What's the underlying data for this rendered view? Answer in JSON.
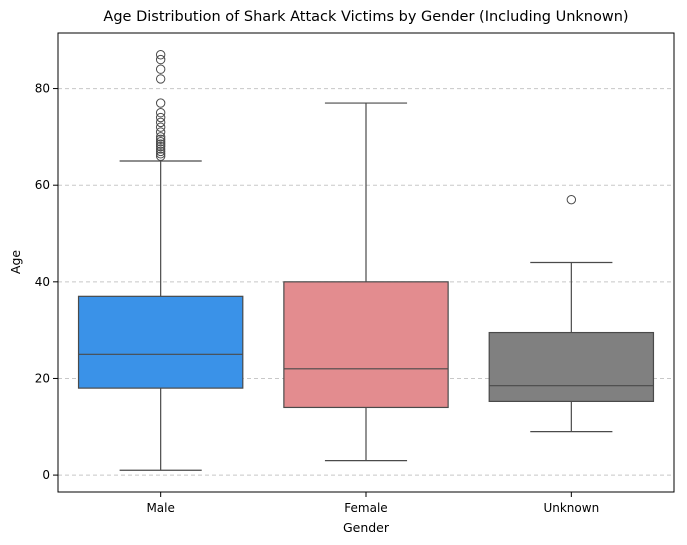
{
  "chart_data": {
    "type": "box",
    "title": "Age Distribution of Shark Attack Victims by Gender (Including Unknown)",
    "xlabel": "Gender",
    "ylabel": "Age",
    "ylim": [
      -3.5,
      91.5
    ],
    "yticks": [
      0,
      20,
      40,
      60,
      80
    ],
    "grid": "y-dashed",
    "categories": [
      "Male",
      "Female",
      "Unknown"
    ],
    "colors": [
      "#3a92e8",
      "#e38c8f",
      "#808080"
    ],
    "boxes": [
      {
        "name": "Male",
        "whisker_low": 1,
        "q1": 18,
        "median": 25,
        "q3": 37,
        "whisker_high": 65,
        "outliers": [
          66,
          66.5,
          67,
          67.5,
          68,
          68.5,
          69,
          69.5,
          70,
          71,
          72,
          73,
          74,
          75,
          77,
          82,
          84,
          86,
          87
        ]
      },
      {
        "name": "Female",
        "whisker_low": 3,
        "q1": 14,
        "median": 22,
        "q3": 40,
        "whisker_high": 77,
        "outliers": []
      },
      {
        "name": "Unknown",
        "whisker_low": 9,
        "q1": 15.25,
        "median": 18.5,
        "q3": 29.5,
        "whisker_high": 44,
        "outliers": [
          57
        ]
      }
    ]
  }
}
